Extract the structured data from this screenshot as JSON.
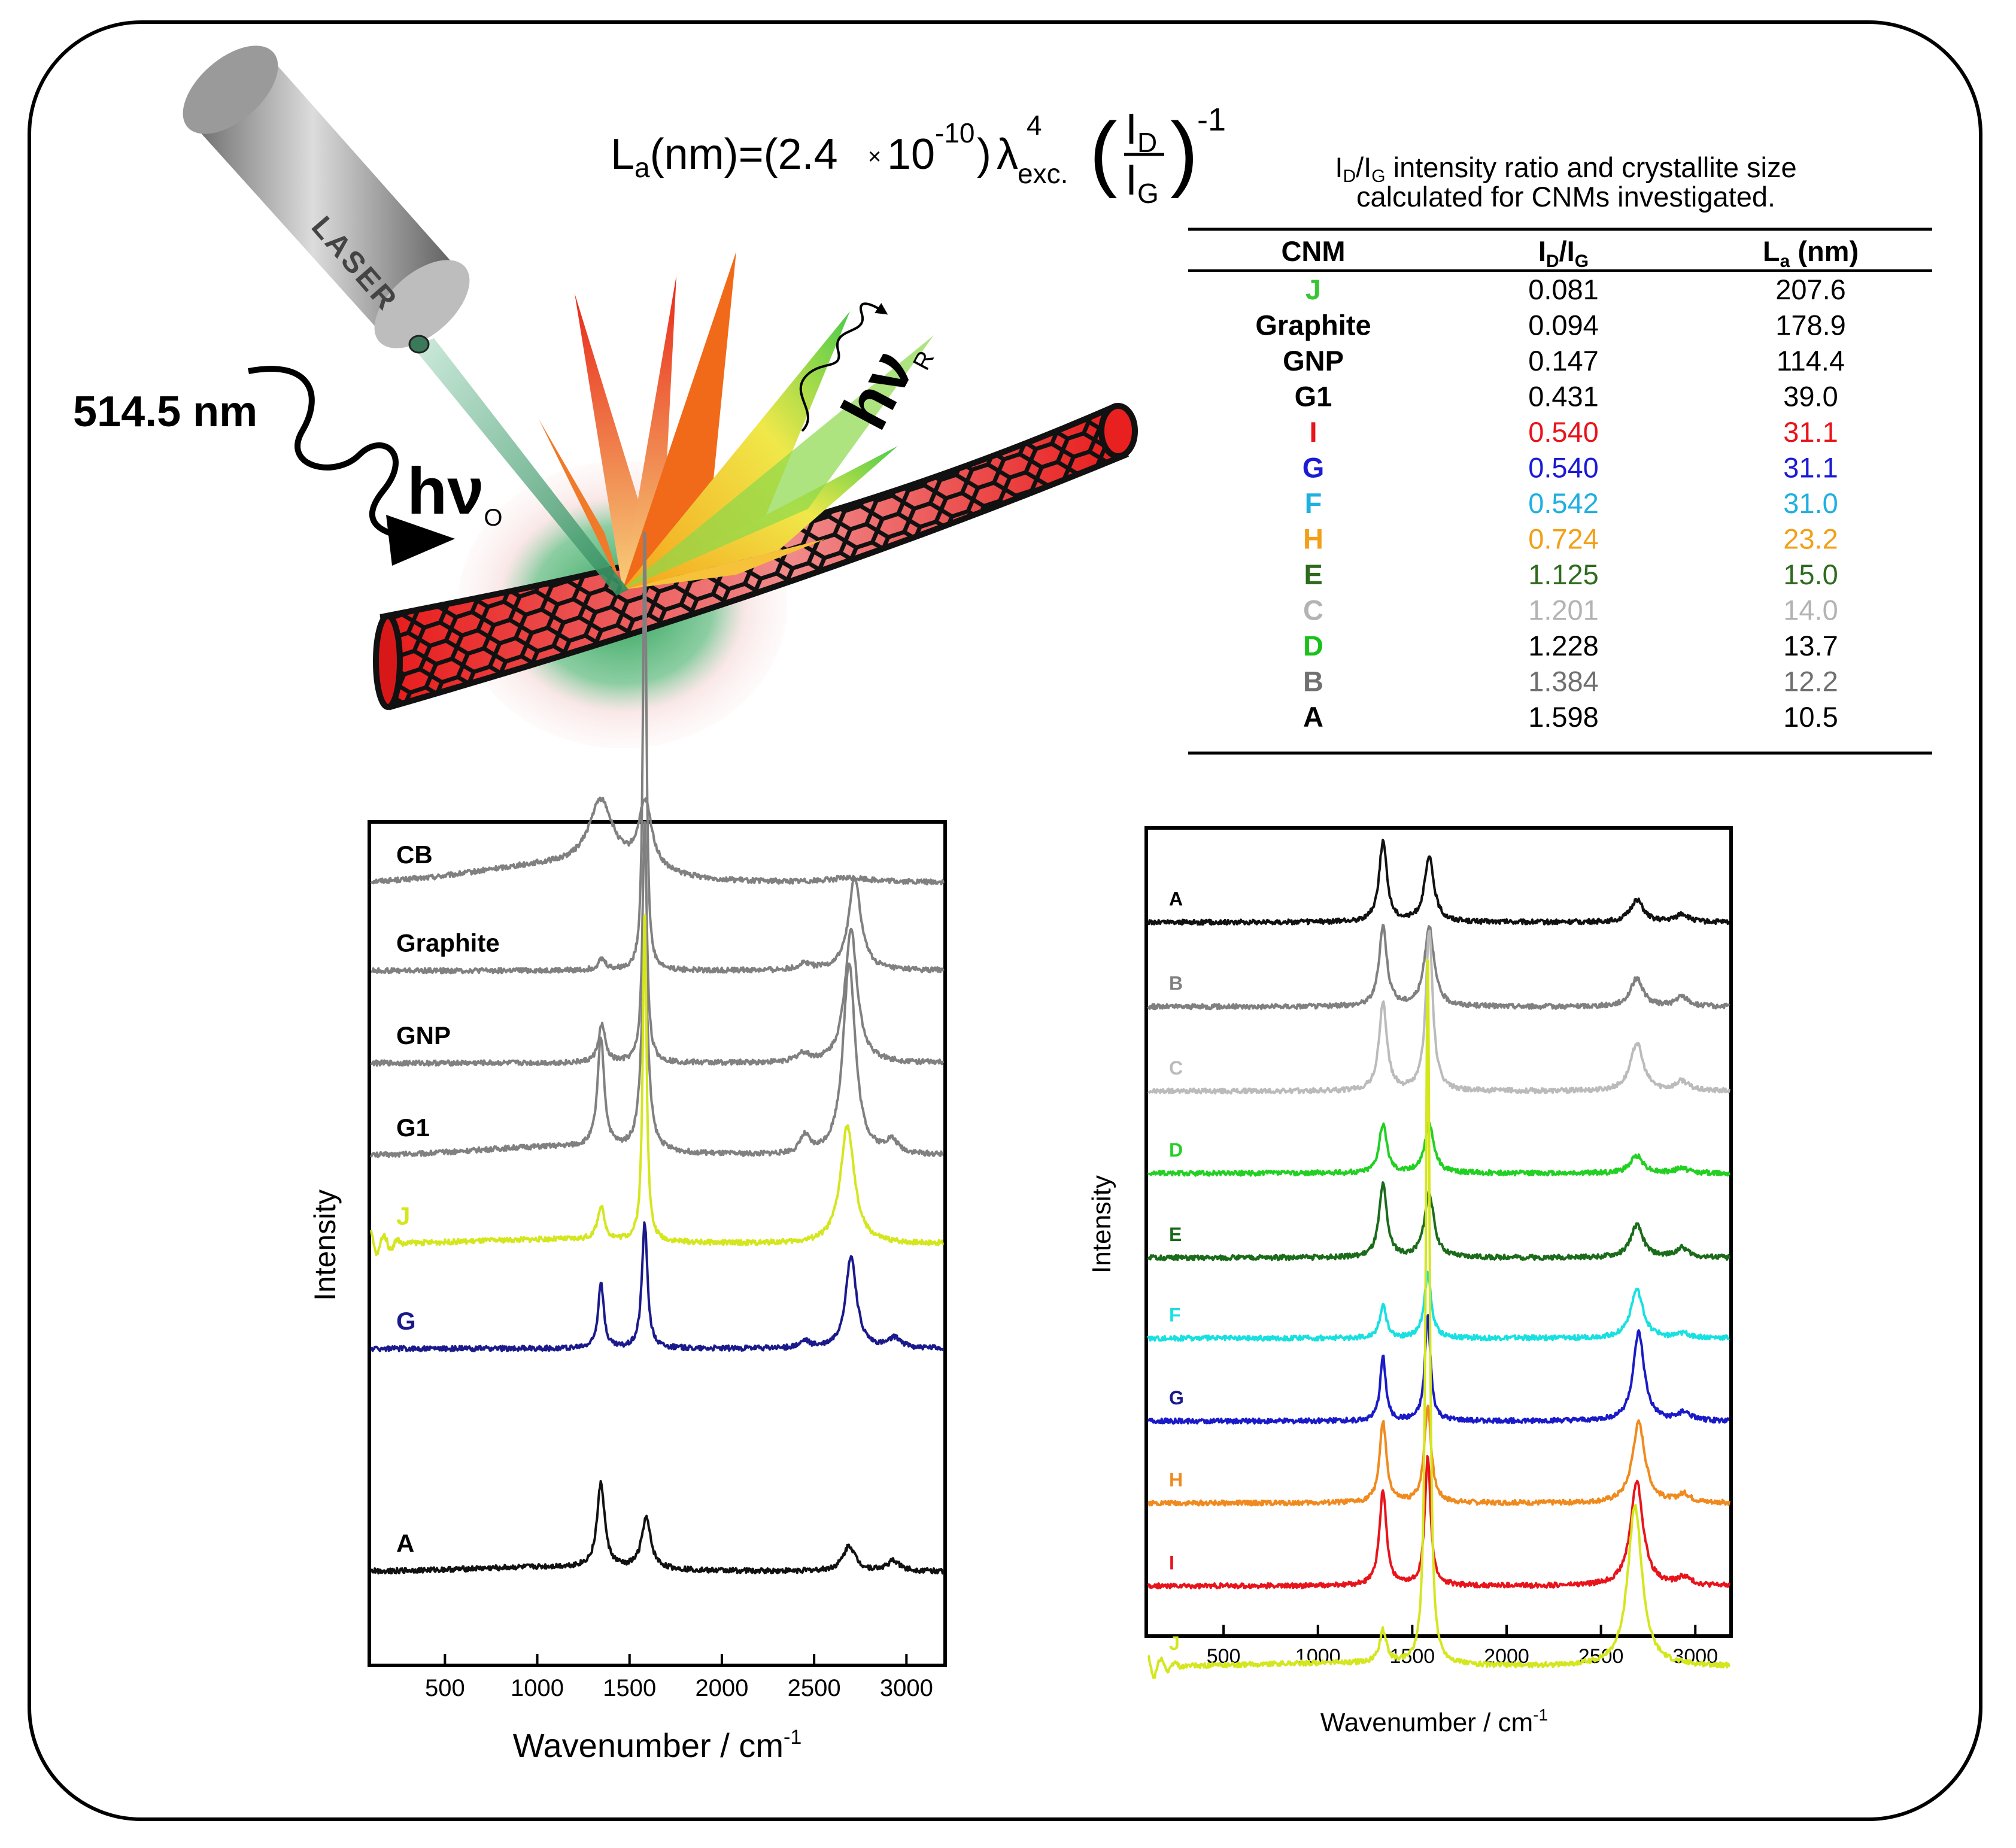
{
  "formula": {
    "lhs": "L",
    "lhs_sub": "a",
    "lhs_rest": "(nm)=(2.4",
    "times": "×",
    "ten": "10",
    "exponent": "-10",
    "close": ")",
    "lambda": "λ",
    "lambda_sup": "4",
    "lambda_sub": "exc.",
    "paren_open": "(",
    "num": "I",
    "num_sub": "D",
    "den": "I",
    "den_sub": "G",
    "paren_close": ")",
    "outer_exp": "-1"
  },
  "illustration": {
    "laser_label": "LASER",
    "wavelength": "514.5 nm",
    "hv": "hν",
    "hv_in_sub": "O",
    "hv_out_sub": "R"
  },
  "table": {
    "caption_line1_pre": "I",
    "caption_line1_sub1": "D",
    "caption_line1_mid": "/I",
    "caption_line1_sub2": "G",
    "caption_line1_post": " intensity ratio and crystallite size",
    "caption_line2": "calculated for CNMs investigated.",
    "header": {
      "cnm": "CNM",
      "ratio_pre": "I",
      "ratio_sub1": "D",
      "ratio_mid": "/I",
      "ratio_sub2": "G",
      "la_pre": "L",
      "la_sub": "a",
      "la_post": " (nm)"
    },
    "rows": [
      {
        "cnm": "J",
        "ratio": "0.081",
        "la": "207.6",
        "name_color": "#39c634",
        "value_color": "#000000"
      },
      {
        "cnm": "Graphite",
        "ratio": "0.094",
        "la": "178.9",
        "name_color": "#000000",
        "value_color": "#000000"
      },
      {
        "cnm": "GNP",
        "ratio": "0.147",
        "la": "114.4",
        "name_color": "#000000",
        "value_color": "#000000"
      },
      {
        "cnm": "G1",
        "ratio": "0.431",
        "la": "39.0",
        "name_color": "#000000",
        "value_color": "#000000"
      },
      {
        "cnm": "I",
        "ratio": "0.540",
        "la": "31.1",
        "name_color": "#e8141b",
        "value_color": "#e8141b"
      },
      {
        "cnm": "G",
        "ratio": "0.540",
        "la": "31.1",
        "name_color": "#1b1bd6",
        "value_color": "#1b1bd6"
      },
      {
        "cnm": "F",
        "ratio": "0.542",
        "la": "31.0",
        "name_color": "#1fb0e0",
        "value_color": "#1fb0e0"
      },
      {
        "cnm": "H",
        "ratio": "0.724",
        "la": "23.2",
        "name_color": "#f2a018",
        "value_color": "#f2a018"
      },
      {
        "cnm": "E",
        "ratio": "1.125",
        "la": "15.0",
        "name_color": "#2e6b1e",
        "value_color": "#2e6b1e"
      },
      {
        "cnm": "C",
        "ratio": "1.201",
        "la": "14.0",
        "name_color": "#b3b3b3",
        "value_color": "#b3b3b3"
      },
      {
        "cnm": "D",
        "ratio": "1.228",
        "la": "13.7",
        "name_color": "#19c21b",
        "value_color": "#000000"
      },
      {
        "cnm": "B",
        "ratio": "1.384",
        "la": "12.2",
        "name_color": "#707070",
        "value_color": "#707070"
      },
      {
        "cnm": "A",
        "ratio": "1.598",
        "la": "10.5",
        "name_color": "#000000",
        "value_color": "#000000"
      }
    ]
  },
  "chart_data": [
    {
      "type": "line",
      "title": "",
      "xlabel": "Wavenumber / cm",
      "xlabel_sup": "-1",
      "ylabel": "Intensity",
      "xlim": [
        100,
        3200
      ],
      "xticks": [
        500,
        1000,
        1500,
        2000,
        2500,
        3000
      ],
      "xtick_labels": [
        "500",
        "1000",
        "1500",
        "2000",
        "2500",
        "3000"
      ],
      "series": [
        {
          "name": "CB",
          "color": "#808080",
          "label_color": "#000000",
          "baseline": 0.93,
          "peaks": [
            [
              1345,
              0.08,
              80
            ],
            [
              1585,
              0.08,
              45
            ],
            [
              2700,
              0.005,
              150
            ]
          ],
          "bump": 0.02
        },
        {
          "name": "Graphite",
          "color": "#808080",
          "label_color": "#000000",
          "baseline": 0.825,
          "peaks": [
            [
              1350,
              0.013,
              25
            ],
            [
              1582,
              0.54,
              11
            ],
            [
              2450,
              0.008,
              40
            ],
            [
              2720,
              0.11,
              40
            ]
          ],
          "bump": 0.0
        },
        {
          "name": "GNP",
          "color": "#808080",
          "label_color": "#000000",
          "baseline": 0.715,
          "peaks": [
            [
              1350,
              0.045,
              22
            ],
            [
              1582,
              0.29,
              14
            ],
            [
              2440,
              0.01,
              40
            ],
            [
              2700,
              0.16,
              40
            ]
          ],
          "bump": 0.0
        },
        {
          "name": "G1",
          "color": "#808080",
          "label_color": "#000000",
          "baseline": 0.605,
          "peaks": [
            [
              1345,
              0.13,
              22
            ],
            [
              1582,
              0.23,
              22
            ],
            [
              2450,
              0.02,
              30
            ],
            [
              2690,
              0.23,
              40
            ],
            [
              2920,
              0.015,
              40
            ]
          ],
          "bump": 0.01
        },
        {
          "name": "J",
          "color": "#d4e61e",
          "label_color": "#d4e61e",
          "baseline": 0.5,
          "peaks": [
            [
              1345,
              0.04,
              22
            ],
            [
              1582,
              0.4,
              12
            ],
            [
              2680,
              0.14,
              45
            ]
          ],
          "bump": 0.005,
          "low_noise": true
        },
        {
          "name": "G",
          "color": "#1a1a8c",
          "label_color": "#1a1a8c",
          "baseline": 0.375,
          "peaks": [
            [
              1345,
              0.08,
              18
            ],
            [
              1582,
              0.15,
              18
            ],
            [
              2450,
              0.008,
              30
            ],
            [
              2700,
              0.11,
              35
            ],
            [
              2940,
              0.012,
              40
            ]
          ],
          "bump": 0.0
        },
        {
          "name": "A",
          "color": "#111111",
          "label_color": "#000000",
          "baseline": 0.11,
          "peaks": [
            [
              1345,
              0.1,
              25
            ],
            [
              1590,
              0.06,
              30
            ],
            [
              2690,
              0.03,
              40
            ],
            [
              2930,
              0.012,
              40
            ]
          ],
          "bump": 0.005
        }
      ]
    },
    {
      "type": "line",
      "title": "",
      "xlabel": "Wavenumber / cm",
      "xlabel_sup": "-1",
      "ylabel": "Intensity",
      "xlim": [
        100,
        3180
      ],
      "xticks": [
        500,
        1000,
        1500,
        2000,
        2500,
        3000
      ],
      "xtick_labels": [
        "500",
        "1000",
        "1500",
        "2000",
        "2500",
        "3000"
      ],
      "series": [
        {
          "name": "A",
          "color": "#111111",
          "label_color": "#000000",
          "baseline": 0.885,
          "peaks": [
            [
              1345,
              0.1,
              25
            ],
            [
              1590,
              0.08,
              30
            ],
            [
              2690,
              0.028,
              40
            ],
            [
              2930,
              0.01,
              40
            ]
          ],
          "bump": 0.0
        },
        {
          "name": "B",
          "color": "#808080",
          "label_color": "#808080",
          "baseline": 0.78,
          "peaks": [
            [
              1345,
              0.1,
              25
            ],
            [
              1590,
              0.1,
              30
            ],
            [
              2690,
              0.035,
              40
            ],
            [
              2930,
              0.012,
              40
            ]
          ],
          "bump": 0.0
        },
        {
          "name": "C",
          "color": "#bbbbbb",
          "label_color": "#bbbbbb",
          "baseline": 0.675,
          "peaks": [
            [
              1345,
              0.11,
              25
            ],
            [
              1590,
              0.2,
              22
            ],
            [
              2690,
              0.06,
              40
            ],
            [
              2930,
              0.012,
              40
            ]
          ],
          "bump": 0.0
        },
        {
          "name": "D",
          "color": "#22d022",
          "label_color": "#22d022",
          "baseline": 0.573,
          "peaks": [
            [
              1345,
              0.06,
              25
            ],
            [
              1590,
              0.06,
              30
            ],
            [
              2690,
              0.022,
              40
            ],
            [
              2930,
              0.006,
              40
            ]
          ],
          "bump": 0.0
        },
        {
          "name": "E",
          "color": "#1a6b1a",
          "label_color": "#1a6b1a",
          "baseline": 0.468,
          "peaks": [
            [
              1345,
              0.09,
              25
            ],
            [
              1590,
              0.08,
              30
            ],
            [
              2690,
              0.04,
              40
            ],
            [
              2930,
              0.012,
              40
            ]
          ],
          "bump": 0.0
        },
        {
          "name": "F",
          "color": "#19e0e0",
          "label_color": "#19e0e0",
          "baseline": 0.368,
          "peaks": [
            [
              1345,
              0.04,
              22
            ],
            [
              1582,
              0.08,
              22
            ],
            [
              2690,
              0.06,
              40
            ],
            [
              2940,
              0.005,
              40
            ]
          ],
          "bump": 0.0
        },
        {
          "name": "G",
          "color": "#1a1ac8",
          "label_color": "#1a1a8c",
          "baseline": 0.265,
          "peaks": [
            [
              1345,
              0.08,
              18
            ],
            [
              1582,
              0.13,
              18
            ],
            [
              2700,
              0.11,
              35
            ],
            [
              2940,
              0.01,
              40
            ]
          ],
          "bump": 0.0
        },
        {
          "name": "H",
          "color": "#f08a1e",
          "label_color": "#f08a1e",
          "baseline": 0.163,
          "peaks": [
            [
              1345,
              0.1,
              22
            ],
            [
              1582,
              0.12,
              22
            ],
            [
              2700,
              0.1,
              40
            ],
            [
              2940,
              0.01,
              40
            ]
          ],
          "bump": 0.0
        },
        {
          "name": "I",
          "color": "#e8141b",
          "label_color": "#e8141b",
          "baseline": 0.06,
          "peaks": [
            [
              1345,
              0.12,
              22
            ],
            [
              1582,
              0.16,
              18
            ],
            [
              2690,
              0.13,
              40
            ],
            [
              2940,
              0.01,
              40
            ]
          ],
          "bump": 0.0
        },
        {
          "name": "J",
          "color": "#d4e61e",
          "label_color": "#d4e61e",
          "baseline": -0.04,
          "peaks": [
            [
              1345,
              0.04,
              22
            ],
            [
              1582,
              0.9,
              12
            ],
            [
              2680,
              0.2,
              45
            ]
          ],
          "bump": 0.004,
          "low_noise": true
        }
      ]
    }
  ]
}
